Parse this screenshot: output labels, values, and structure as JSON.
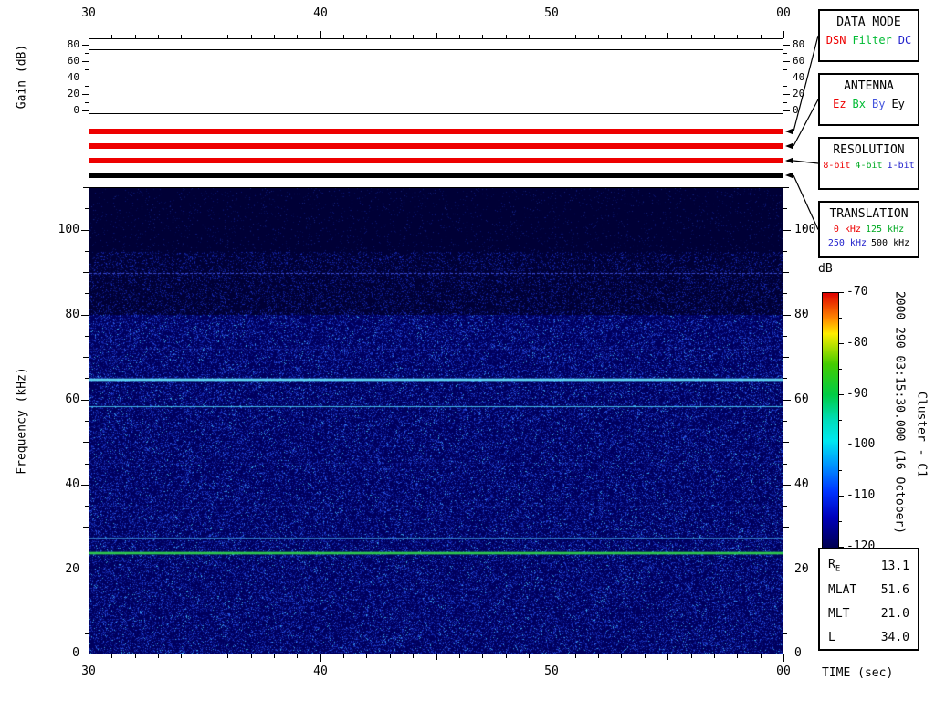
{
  "annotations": {
    "timestamp_vertical": "2000 290 03:15:30.000 (16 October)",
    "spacecraft_vertical": "Cluster - C1"
  },
  "chart_data": {
    "type": "heatmap",
    "time_axis": {
      "label": "TIME (sec)",
      "tick_labels": [
        "30",
        "40",
        "50",
        "00"
      ],
      "span_seconds": 30
    },
    "freq_axis": {
      "label": "Frequency (kHz)",
      "major_ticks": [
        0,
        20,
        40,
        60,
        80,
        100
      ],
      "range_khz": [
        0,
        110
      ]
    },
    "gain_panel": {
      "label": "Gain (dB)",
      "major_ticks": [
        0,
        20,
        40,
        60,
        80
      ],
      "range_db": [
        0,
        88
      ],
      "trace_db": 75
    },
    "colorbar": {
      "label": "dB",
      "ticks": [
        -70,
        -80,
        -90,
        -100,
        -110,
        -120
      ],
      "range": [
        -70,
        -120
      ],
      "gradient": [
        "#dd0000 0%",
        "#ff8800 10%",
        "#ffee00 16%",
        "#44cc00 28%",
        "#00cc44 40%",
        "#00ddbb 50%",
        "#00e8f0 58%",
        "#0090ff 68%",
        "#0033ff 78%",
        "#0000bb 88%",
        "#000050 100%"
      ]
    },
    "status_bars": [
      {
        "name": "data-mode-bar",
        "color": "#ee0000"
      },
      {
        "name": "antenna-bar",
        "color": "#ee0000"
      },
      {
        "name": "resolution-bar",
        "color": "#ee0000"
      },
      {
        "name": "translation-bar",
        "color": "#000000"
      }
    ],
    "spectral_lines": [
      {
        "freq_khz": 90,
        "color": "#4254e0",
        "width": 1,
        "alpha": 0.9,
        "style": "dotted"
      },
      {
        "freq_khz": 72,
        "color": "#2334b8",
        "width": 1,
        "alpha": 0.5,
        "style": "dotted"
      },
      {
        "freq_khz": 65,
        "color": "#5fd4f2",
        "width": 2,
        "alpha": 1,
        "style": "solid"
      },
      {
        "freq_khz": 58.5,
        "color": "#46bce8",
        "width": 1,
        "alpha": 1,
        "style": "solid"
      },
      {
        "freq_khz": 45,
        "color": "#2334b8",
        "width": 1,
        "alpha": 0.4,
        "style": "dotted"
      },
      {
        "freq_khz": 35,
        "color": "#2334b8",
        "width": 1,
        "alpha": 0.35,
        "style": "dotted"
      },
      {
        "freq_khz": 27.5,
        "color": "#3893d4",
        "width": 1,
        "alpha": 0.85,
        "style": "solid"
      },
      {
        "freq_khz": 24,
        "color": "#30c84e",
        "width": 2,
        "alpha": 1,
        "style": "solid"
      }
    ],
    "noise": {
      "background": "#000036",
      "lower_band_base": "#00005e",
      "boundary_khz": 80,
      "upper_sparse_khz": 95,
      "seed": 1234
    }
  },
  "legend_boxes": [
    {
      "title": "DATA MODE",
      "small": false,
      "lines": [
        [
          {
            "label": "DSN",
            "color": "#ee0000"
          },
          {
            "label": "Filter",
            "color": "#00bb33"
          },
          {
            "label": "DC",
            "color": "#2222cc"
          }
        ]
      ]
    },
    {
      "title": "ANTENNA",
      "small": false,
      "lines": [
        [
          {
            "label": "Ez",
            "color": "#ee0000"
          },
          {
            "label": "Bx",
            "color": "#00bb33"
          },
          {
            "label": "By",
            "color": "#4455dd"
          },
          {
            "label": "Ey",
            "color": "#000000"
          }
        ]
      ]
    },
    {
      "title": "RESOLUTION",
      "small": true,
      "lines": [
        [
          {
            "label": "8-bit",
            "color": "#ee0000"
          },
          {
            "label": "4-bit",
            "color": "#00aa22"
          },
          {
            "label": "1-bit",
            "color": "#2222cc"
          }
        ]
      ]
    },
    {
      "title": "TRANSLATION",
      "small": true,
      "lines": [
        [
          {
            "label": "0 kHz",
            "color": "#ee0000"
          },
          {
            "label": "125 kHz",
            "color": "#00aa22"
          }
        ],
        [
          {
            "label": "250 kHz",
            "color": "#2222cc"
          },
          {
            "label": "500 kHz",
            "color": "#000000"
          }
        ]
      ]
    }
  ],
  "ephemeris": [
    {
      "label": "R",
      "sub": "E",
      "value": "13.1"
    },
    {
      "label": "MLAT",
      "sub": "",
      "value": "51.6"
    },
    {
      "label": "MLT",
      "sub": "",
      "value": "21.0"
    },
    {
      "label": "L",
      "sub": "",
      "value": "34.0"
    }
  ]
}
